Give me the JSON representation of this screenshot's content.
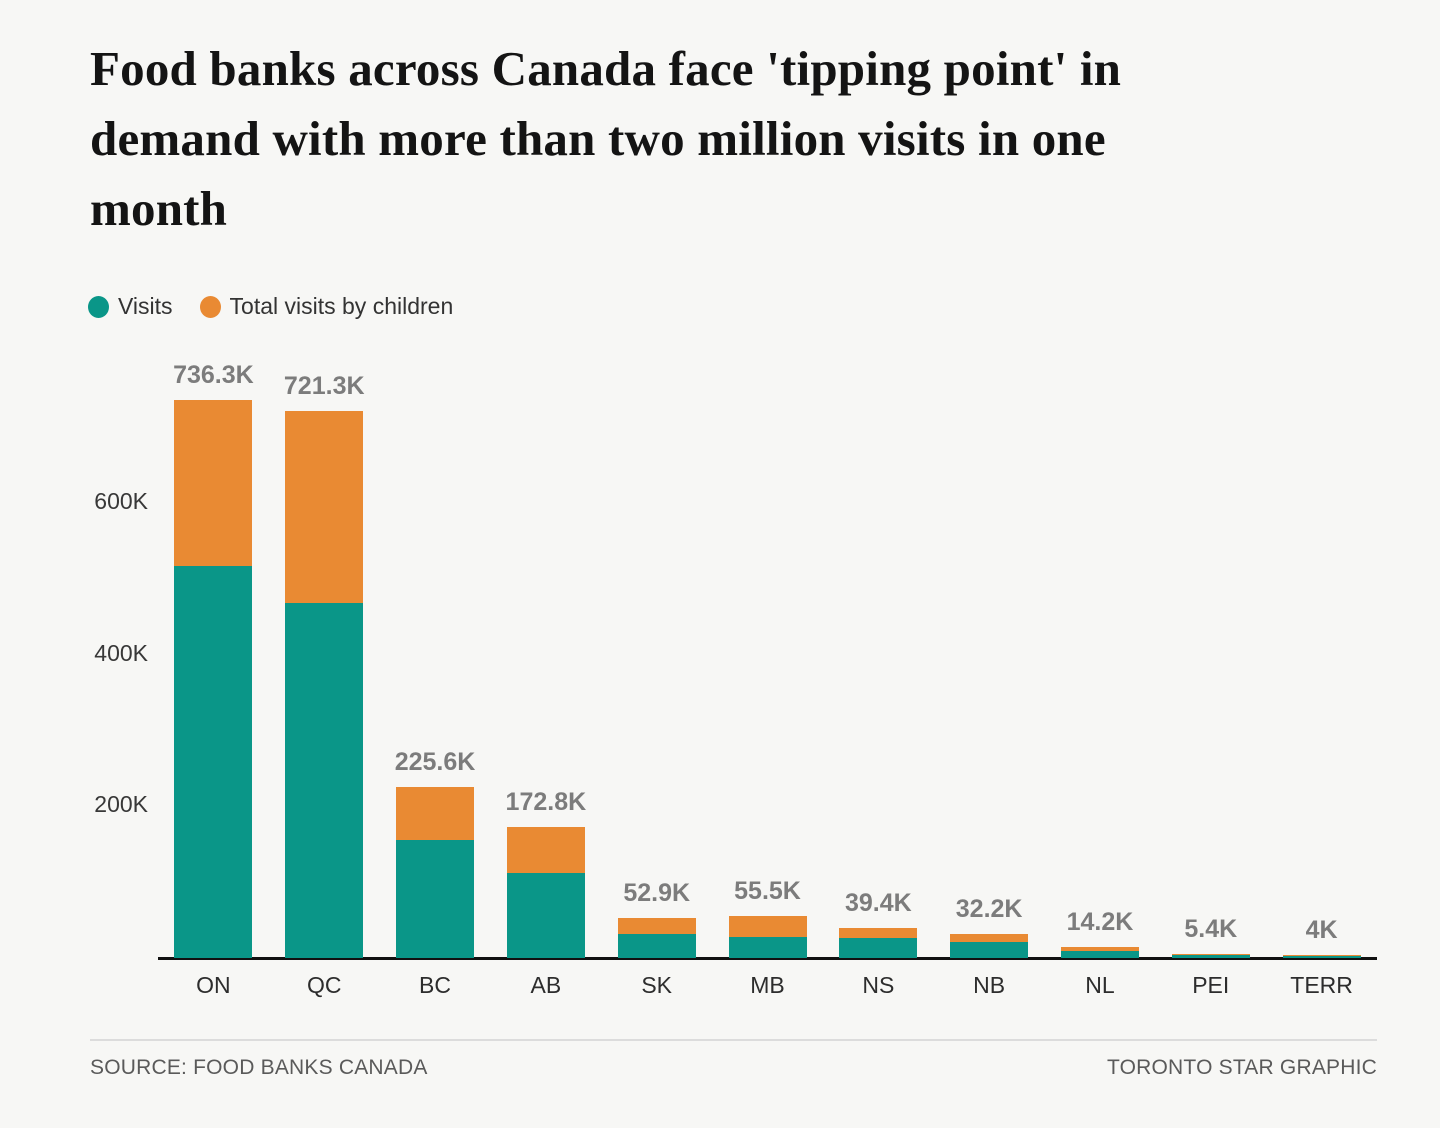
{
  "page": {
    "background": "#f7f7f5"
  },
  "header": {
    "title_lines": [
      "Food banks across Canada face 'tipping point' in",
      "demand with more than two million visits in one",
      "month"
    ]
  },
  "legend": {
    "items": [
      {
        "label": "Visits",
        "color": "#0a9688"
      },
      {
        "label": "Total visits by children",
        "color": "#e98a33"
      }
    ]
  },
  "chart_data": {
    "type": "bar",
    "stacked": true,
    "units": "visits, values in thousands (K)",
    "categories": [
      "ON",
      "QC",
      "BC",
      "AB",
      "SK",
      "MB",
      "NS",
      "NB",
      "NL",
      "PEI",
      "TERR"
    ],
    "series": [
      {
        "name": "Visits",
        "color": "#0a9688",
        "values_thousands": [
          517.2,
          467.6,
          155.3,
          112.2,
          32.0,
          28.1,
          26.3,
          20.5,
          9.0,
          3.8,
          2.3
        ]
      },
      {
        "name": "Total visits by children",
        "color": "#e98a33",
        "values_thousands": [
          219.1,
          253.7,
          70.3,
          60.6,
          20.9,
          27.4,
          13.1,
          11.7,
          5.2,
          1.6,
          1.7
        ]
      }
    ],
    "totals_thousands": [
      736.3,
      721.3,
      225.6,
      172.8,
      52.9,
      55.5,
      39.4,
      32.2,
      14.2,
      5.4,
      4.0
    ],
    "total_labels": [
      "736.3K",
      "721.3K",
      "225.6K",
      "172.8K",
      "52.9K",
      "55.5K",
      "39.4K",
      "32.2K",
      "14.2K",
      "5.4K",
      "4K"
    ],
    "y_axis": {
      "ticks": [
        {
          "value_thousands": 200,
          "label": "200K"
        },
        {
          "value_thousands": 400,
          "label": "400K"
        },
        {
          "value_thousands": 600,
          "label": "600K"
        }
      ],
      "range_thousands": [
        0,
        760
      ],
      "gridlines": false
    },
    "legend_position": "top-left"
  },
  "footer": {
    "source": "SOURCE: FOOD BANKS CANADA",
    "credit": "TORONTO STAR GRAPHIC"
  }
}
